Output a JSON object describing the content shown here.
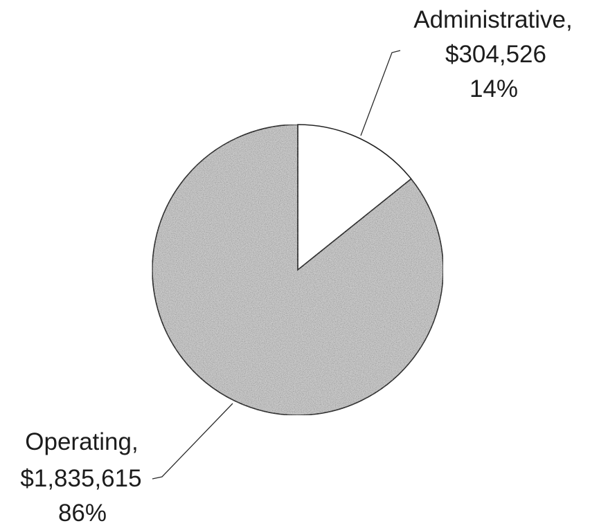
{
  "chart_data": {
    "type": "pie",
    "title": "",
    "slices": [
      {
        "name": "Administrative",
        "value": 304526,
        "percent": 14,
        "label_lines": [
          "Administrative,",
          "$304,526",
          "14%"
        ],
        "fill": "#ffffff"
      },
      {
        "name": "Operating",
        "value": 1835615,
        "percent": 86,
        "label_lines": [
          "Operating,",
          "$1,835,615",
          "86%"
        ],
        "fill": "#c9c9c9"
      }
    ],
    "start_angle_deg": 0,
    "direction": "clockwise",
    "edge_color": "#222222"
  }
}
